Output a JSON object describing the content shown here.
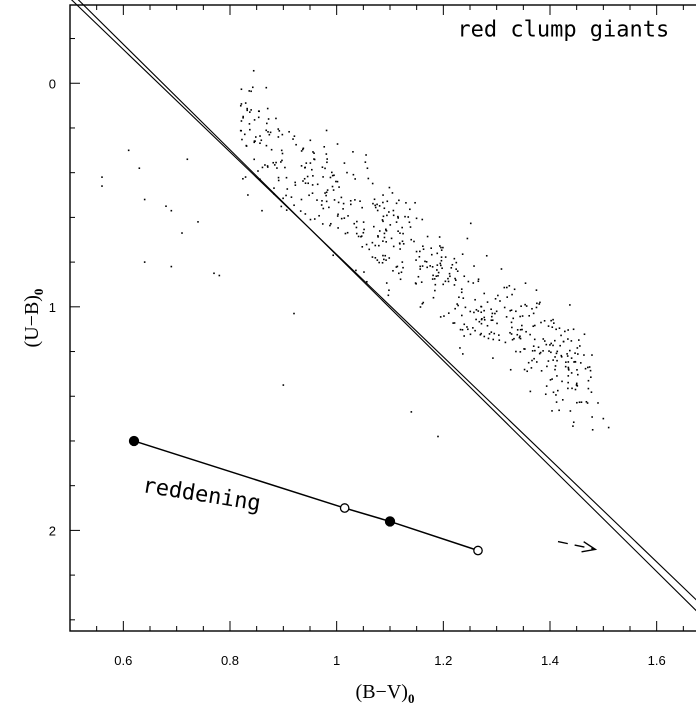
{
  "chart_data": {
    "type": "scatter",
    "title": "",
    "xlabel": "(B−V)",
    "xlabel_sub": "0",
    "ylabel": "(U−B)",
    "ylabel_sub": "0",
    "xlim": [
      0.5,
      1.7
    ],
    "ylim": [
      -0.35,
      2.45
    ],
    "y_inverted": true,
    "x_ticks": [
      0.6,
      0.8,
      1.0,
      1.2,
      1.4,
      1.6
    ],
    "x_tick_labels": [
      "0.6",
      "0.8",
      "1",
      "1.2",
      "1.4",
      "1.6"
    ],
    "y_ticks": [
      0,
      1,
      2
    ],
    "y_tick_labels": [
      "0",
      "1",
      "2"
    ],
    "grid": false,
    "annotations": [
      {
        "text": "red clump giants",
        "x": 1.425,
        "y": -0.21
      },
      {
        "text": "reddening",
        "x": 0.745,
        "y": 1.87,
        "rotation_deg": 9
      }
    ],
    "lines": [
      {
        "name": "",
        "x": [
          0.5,
          1.7
        ],
        "y": [
          -0.38,
          2.37
        ]
      },
      {
        "name": "",
        "x": [
          0.5,
          1.7
        ],
        "y": [
          -0.41,
          2.42
        ]
      }
    ],
    "reddening_vector": {
      "x": [
        0.62,
        1.015,
        1.1,
        1.265
      ],
      "y": [
        1.6,
        1.9,
        1.96,
        2.09
      ],
      "markers": [
        "filled",
        "open",
        "filled",
        "open"
      ]
    },
    "arrow": {
      "from": [
        1.415,
        2.05
      ],
      "to": [
        1.485,
        2.085
      ],
      "style": "dashed"
    },
    "scatter_seed": 7,
    "scatter_n": 580
  }
}
